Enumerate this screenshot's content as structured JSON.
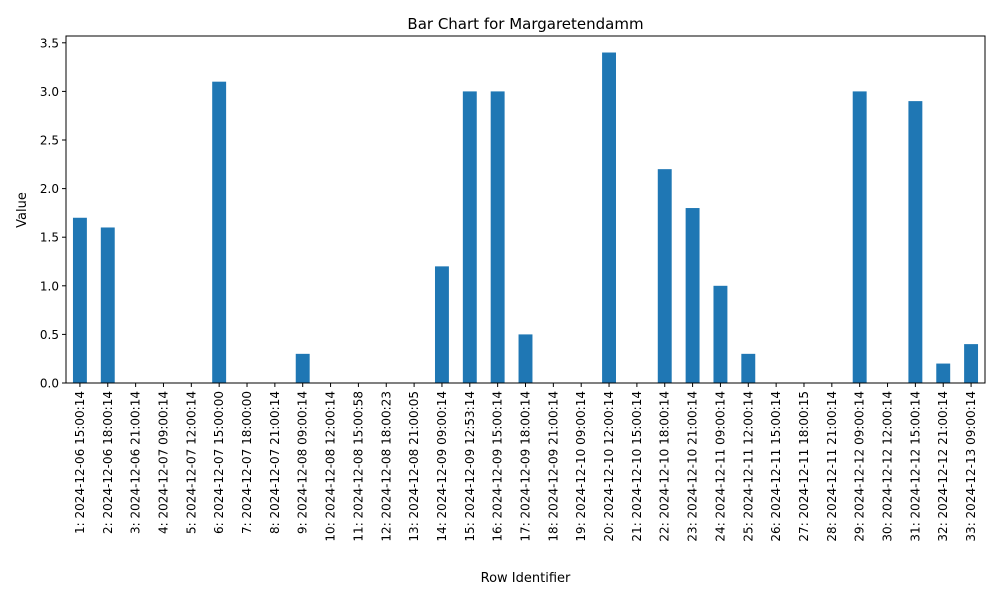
{
  "chart_data": {
    "type": "bar",
    "title": "Bar Chart for Margaretendamm",
    "xlabel": "Row Identifier",
    "ylabel": "Value",
    "ylim": [
      0,
      3.57
    ],
    "yticks": [
      "0.0",
      "0.5",
      "1.0",
      "1.5",
      "2.0",
      "2.5",
      "3.0",
      "3.5"
    ],
    "ytick_values": [
      0,
      0.5,
      1.0,
      1.5,
      2.0,
      2.5,
      3.0,
      3.5
    ],
    "grid": false,
    "bar_color": "#1f77b4",
    "categories": [
      "1: 2024-12-06 15:00:14",
      "2: 2024-12-06 18:00:14",
      "3: 2024-12-06 21:00:14",
      "4: 2024-12-07 09:00:14",
      "5: 2024-12-07 12:00:14",
      "6: 2024-12-07 15:00:00",
      "7: 2024-12-07 18:00:00",
      "8: 2024-12-07 21:00:14",
      "9: 2024-12-08 09:00:14",
      "10: 2024-12-08 12:00:14",
      "11: 2024-12-08 15:00:58",
      "12: 2024-12-08 18:00:23",
      "13: 2024-12-08 21:00:05",
      "14: 2024-12-09 09:00:14",
      "15: 2024-12-09 12:53:14",
      "16: 2024-12-09 15:00:14",
      "17: 2024-12-09 18:00:14",
      "18: 2024-12-09 21:00:14",
      "19: 2024-12-10 09:00:14",
      "20: 2024-12-10 12:00:14",
      "21: 2024-12-10 15:00:14",
      "22: 2024-12-10 18:00:14",
      "23: 2024-12-10 21:00:14",
      "24: 2024-12-11 09:00:14",
      "25: 2024-12-11 12:00:14",
      "26: 2024-12-11 15:00:14",
      "27: 2024-12-11 18:00:15",
      "28: 2024-12-11 21:00:14",
      "29: 2024-12-12 09:00:14",
      "30: 2024-12-12 12:00:14",
      "31: 2024-12-12 15:00:14",
      "32: 2024-12-12 21:00:14",
      "33: 2024-12-13 09:00:14"
    ],
    "values": [
      1.7,
      1.6,
      0,
      0,
      0,
      3.1,
      0,
      0,
      0.3,
      0,
      0,
      0,
      0,
      1.2,
      3.0,
      3.0,
      0.5,
      0,
      0,
      3.4,
      0,
      2.2,
      1.8,
      1.0,
      0.3,
      0,
      0,
      0,
      3.0,
      0,
      2.9,
      0.2,
      0.4
    ]
  }
}
